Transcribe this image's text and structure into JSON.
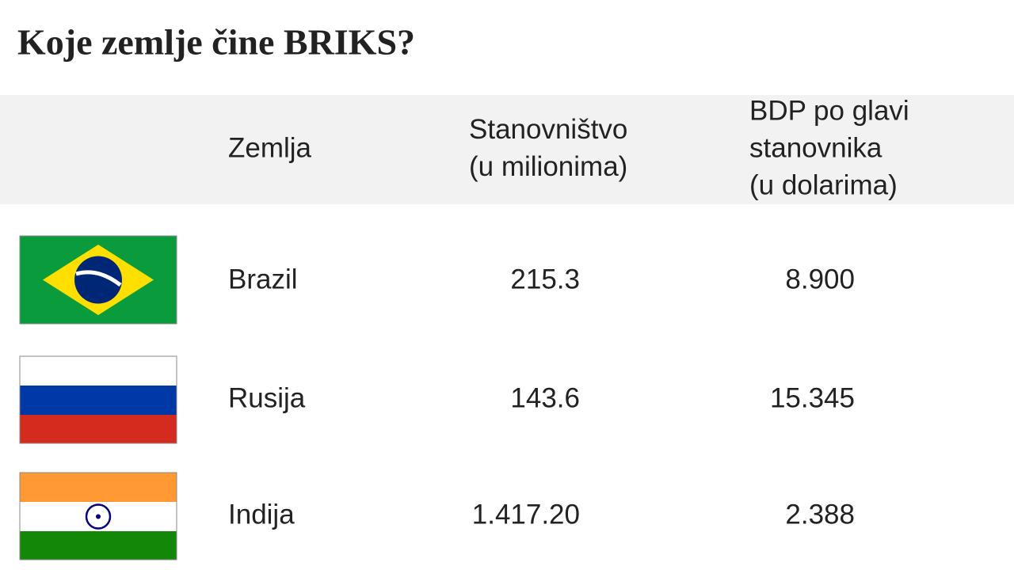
{
  "title": "Koje zemlje čine BRIKS?",
  "table": {
    "header": [
      "Zemlja",
      [
        "Stanovništvo",
        "(u milionima)"
      ],
      [
        "BDP po glavi",
        "stanovnika",
        "(u dolarima)"
      ]
    ],
    "rows": [
      [
        "Brazil",
        "215.3",
        "8.900"
      ],
      [
        "Rusija",
        "143.6",
        "15.345"
      ],
      [
        "Indija",
        "1.417.20",
        "2.388"
      ]
    ]
  }
}
